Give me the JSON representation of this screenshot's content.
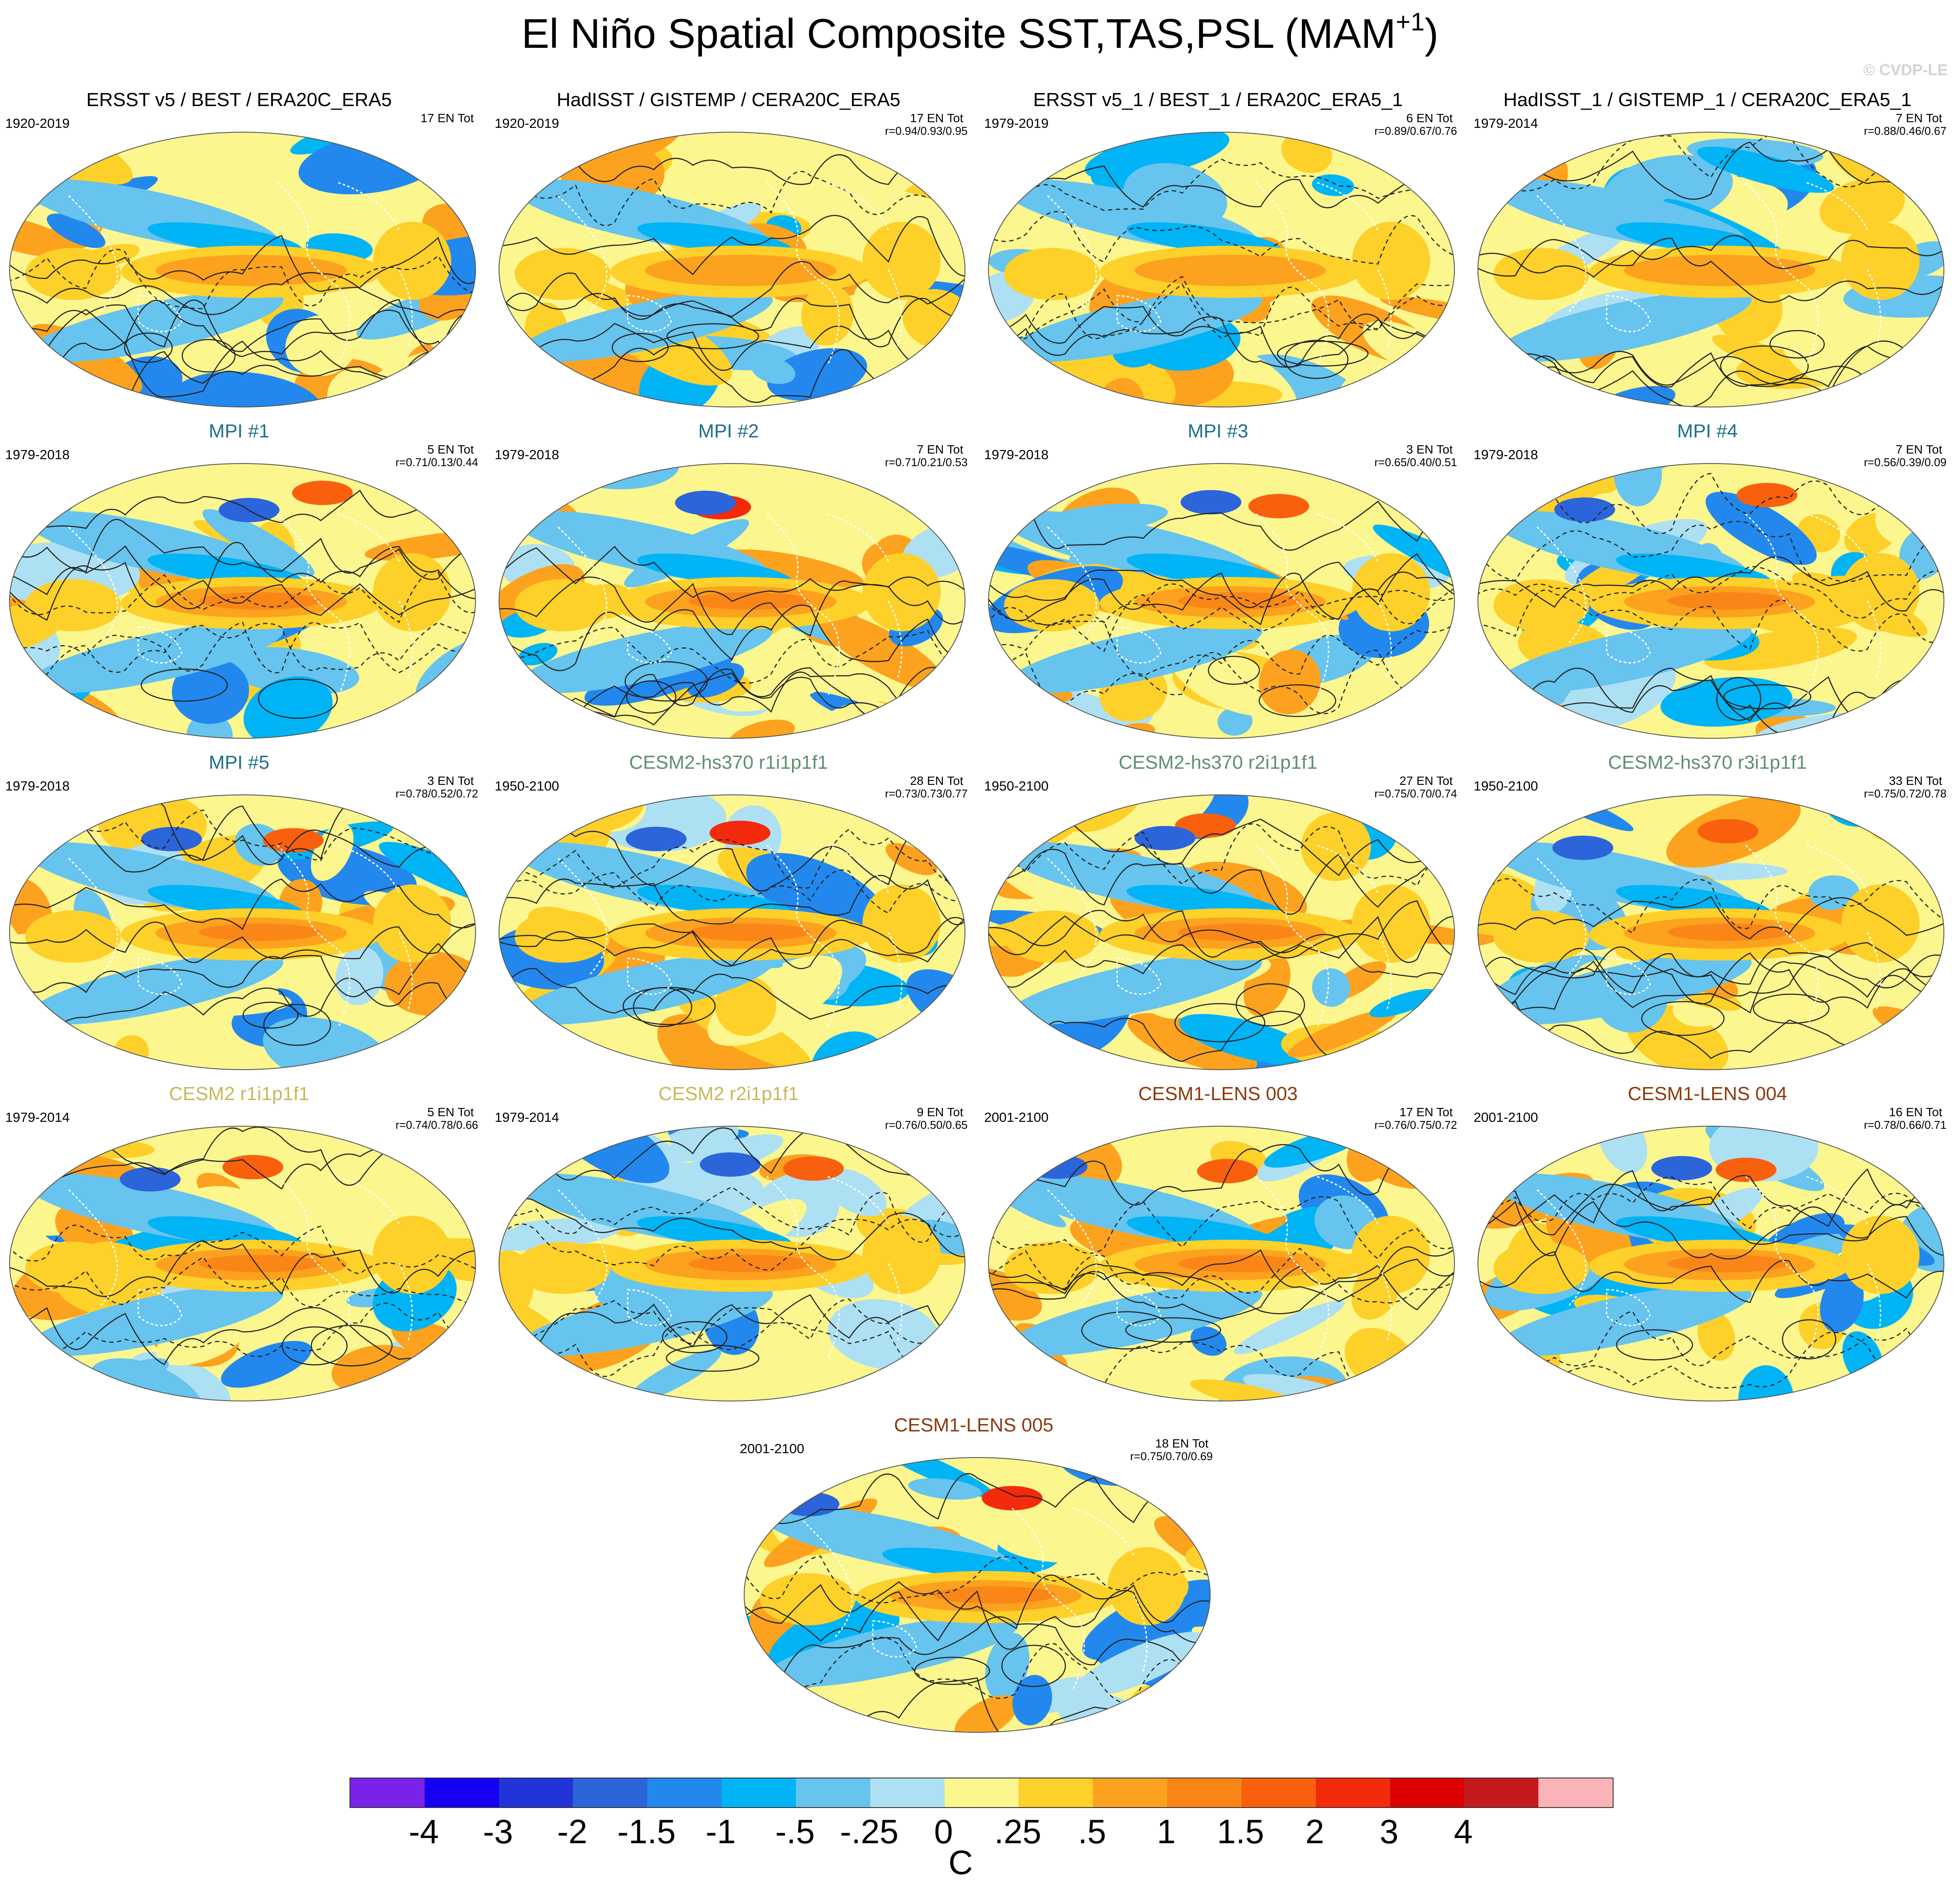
{
  "figure": {
    "title": "El Niño Spatial Composite SST,TAS,PSL (MAM",
    "title_sup": "+1",
    "title_close": ")",
    "credit": "© CVDP-LE"
  },
  "panels": [
    {
      "title": "ERSST v5 / BEST / ERA20C_ERA5",
      "title_color": "#000000",
      "years": "1920-2019",
      "count": "17 EN Tot",
      "r": ""
    },
    {
      "title": "HadISST / GISTEMP / CERA20C_ERA5",
      "title_color": "#000000",
      "years": "1920-2019",
      "count": "17 EN Tot",
      "r": "r=0.94/0.93/0.95"
    },
    {
      "title": "ERSST v5_1 / BEST_1 / ERA20C_ERA5_1",
      "title_color": "#000000",
      "years": "1979-2019",
      "count": "6 EN Tot",
      "r": "r=0.89/0.67/0.76"
    },
    {
      "title": "HadISST_1 / GISTEMP_1 / CERA20C_ERA5_1",
      "title_color": "#000000",
      "years": "1979-2014",
      "count": "7 EN Tot",
      "r": "r=0.88/0.46/0.67"
    },
    {
      "title": "MPI #1",
      "title_color": "#1f6f8b",
      "years": "1979-2018",
      "count": "5 EN Tot",
      "r": "r=0.71/0.13/0.44"
    },
    {
      "title": "MPI #2",
      "title_color": "#1f6f8b",
      "years": "1979-2018",
      "count": "7 EN Tot",
      "r": "r=0.71/0.21/0.53"
    },
    {
      "title": "MPI #3",
      "title_color": "#1f6f8b",
      "years": "1979-2018",
      "count": "3 EN Tot",
      "r": "r=0.65/0.40/0.51"
    },
    {
      "title": "MPI #4",
      "title_color": "#1f6f8b",
      "years": "1979-2018",
      "count": "7 EN Tot",
      "r": "r=0.56/0.39/0.09"
    },
    {
      "title": "MPI #5",
      "title_color": "#1f6f8b",
      "years": "1979-2018",
      "count": "3 EN Tot",
      "r": "r=0.78/0.52/0.72"
    },
    {
      "title": "CESM2-hs370 r1i1p1f1",
      "title_color": "#5f8f6f",
      "years": "1950-2100",
      "count": "28 EN Tot",
      "r": "r=0.73/0.73/0.77"
    },
    {
      "title": "CESM2-hs370 r2i1p1f1",
      "title_color": "#5f8f6f",
      "years": "1950-2100",
      "count": "27 EN Tot",
      "r": "r=0.75/0.70/0.74"
    },
    {
      "title": "CESM2-hs370 r3i1p1f1",
      "title_color": "#5f8f6f",
      "years": "1950-2100",
      "count": "33 EN Tot",
      "r": "r=0.75/0.72/0.78"
    },
    {
      "title": "CESM2 r1i1p1f1",
      "title_color": "#c9b85a",
      "years": "1979-2014",
      "count": "5 EN Tot",
      "r": "r=0.74/0.78/0.66"
    },
    {
      "title": "CESM2 r2i1p1f1",
      "title_color": "#c9b85a",
      "years": "1979-2014",
      "count": "9 EN Tot",
      "r": "r=0.76/0.50/0.65"
    },
    {
      "title": "CESM1-LENS 003",
      "title_color": "#8b3a10",
      "years": "2001-2100",
      "count": "17 EN Tot",
      "r": "r=0.76/0.75/0.72"
    },
    {
      "title": "CESM1-LENS 004",
      "title_color": "#8b3a10",
      "years": "2001-2100",
      "count": "16 EN Tot",
      "r": "r=0.78/0.66/0.71"
    },
    {
      "title": "CESM1-LENS 005",
      "title_color": "#8b3a10",
      "years": "2001-2100",
      "count": "18 EN Tot",
      "r": "r=0.75/0.70/0.69"
    }
  ],
  "colorbar": {
    "colors": [
      "#7a22e8",
      "#1400f2",
      "#2233d8",
      "#2c64d9",
      "#2288ee",
      "#00b4f5",
      "#66c4ee",
      "#aee0f4",
      "#fbf68e",
      "#fdd02a",
      "#fca21e",
      "#fa8618",
      "#f8600e",
      "#f42a0c",
      "#dc0000",
      "#c41a1c",
      "#fab4b8"
    ],
    "labels": [
      "-4",
      "-3",
      "-2",
      "-1.5",
      "-1",
      "-.5",
      "-.25",
      "0",
      ".25",
      ".5",
      "1",
      "1.5",
      "2",
      "3",
      "4"
    ],
    "unit": "C"
  }
}
